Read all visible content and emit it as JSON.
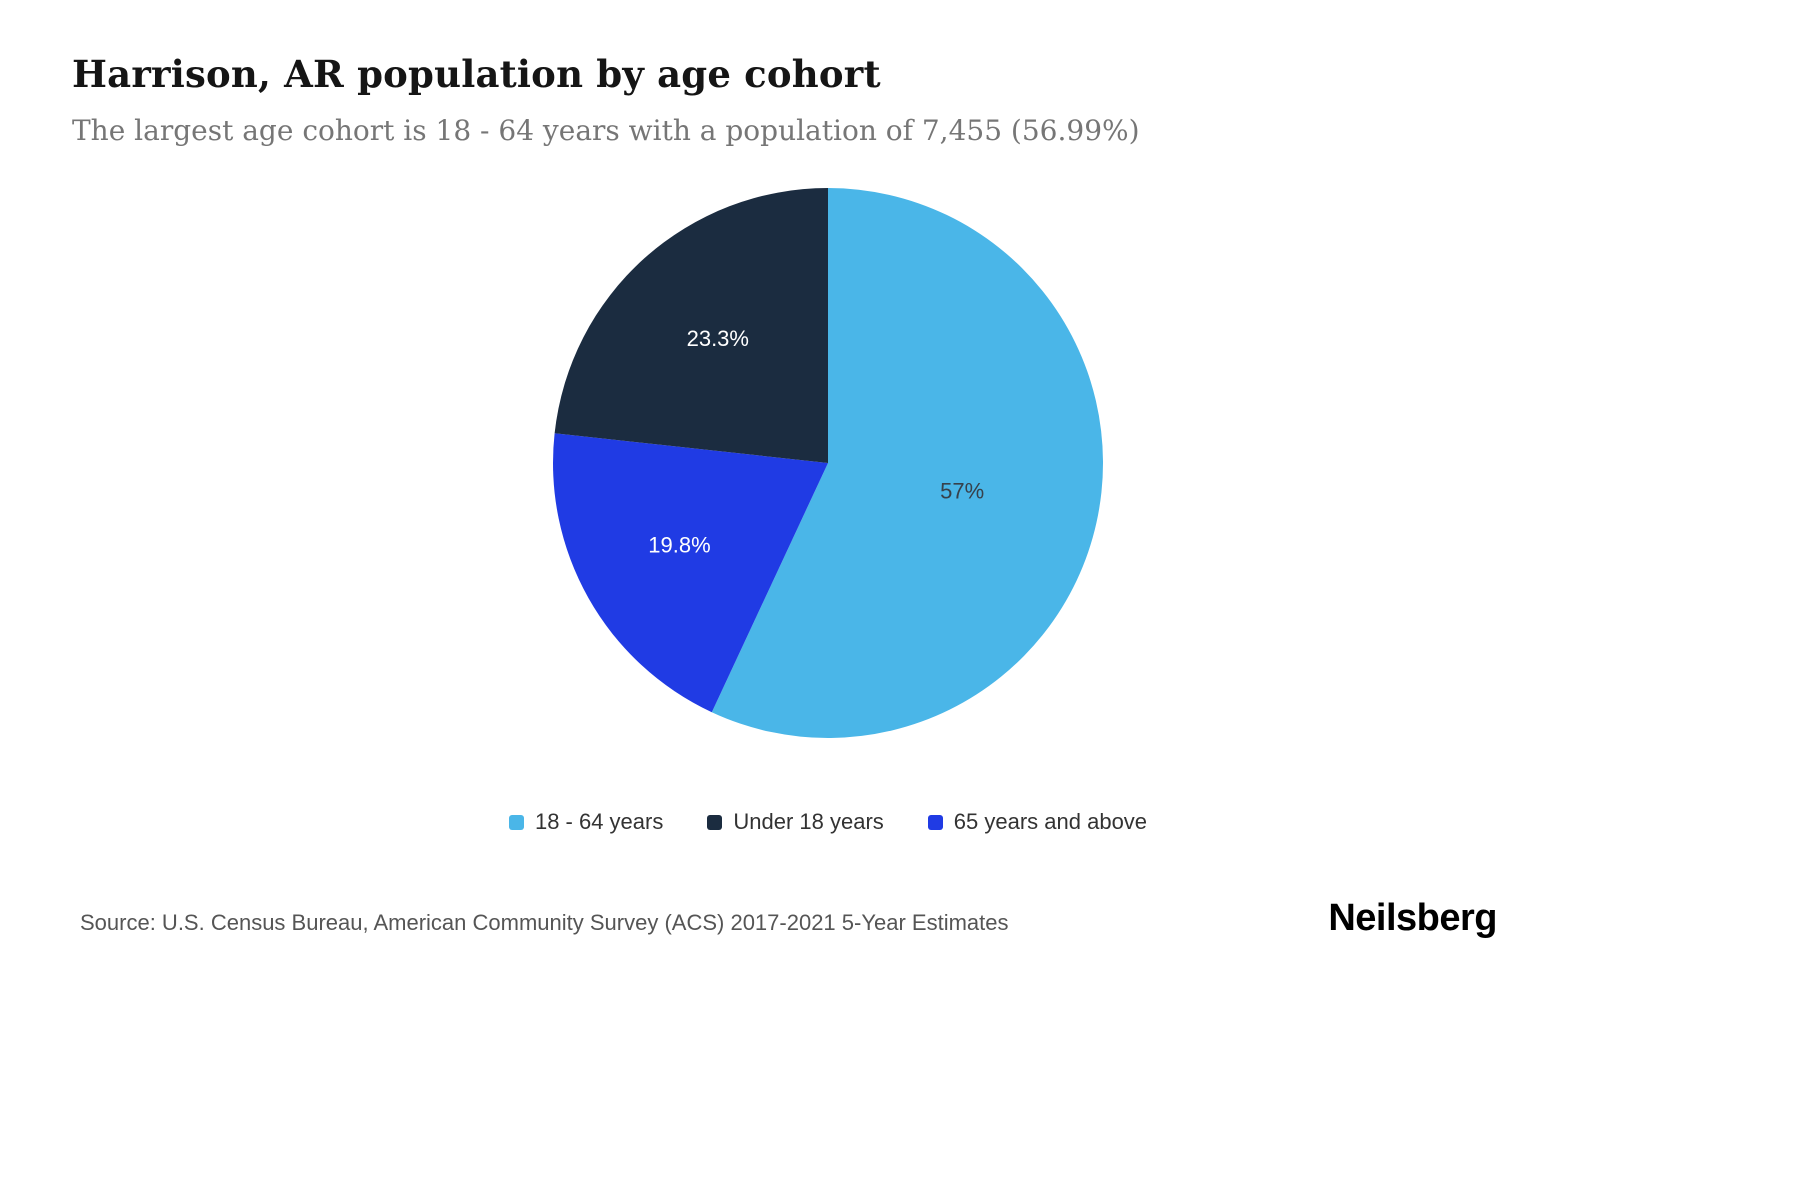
{
  "chart_data": {
    "type": "pie",
    "title": "Harrison, AR population by age cohort",
    "subtitle": "The largest age cohort is 18 - 64 years with a population of 7,455 (56.99%)",
    "start_angle_deg": 0,
    "direction": "clockwise",
    "slices": [
      {
        "label": "18 - 64 years",
        "value": 57,
        "display": "57%",
        "color": "#4ab6e8",
        "label_color": "#37414b",
        "label_radius": 0.5
      },
      {
        "label": "65 years and above",
        "value": 19.8,
        "display": "19.8%",
        "color": "#203be4",
        "label_color": "#ffffff",
        "label_radius": 0.62
      },
      {
        "label": "Under 18 years",
        "value": 23.3,
        "display": "23.3%",
        "color": "#1b2c40",
        "label_color": "#ffffff",
        "label_radius": 0.6
      }
    ],
    "legend_order": [
      0,
      2,
      1
    ],
    "legend_position": "bottom",
    "largest_cohort": {
      "label": "18 - 64 years",
      "population": "7,455",
      "percent": "56.99%"
    }
  },
  "footer": {
    "source": "Source: U.S. Census Bureau, American Community Survey (ACS) 2017-2021 5-Year Estimates",
    "brand": "Neilsberg"
  }
}
